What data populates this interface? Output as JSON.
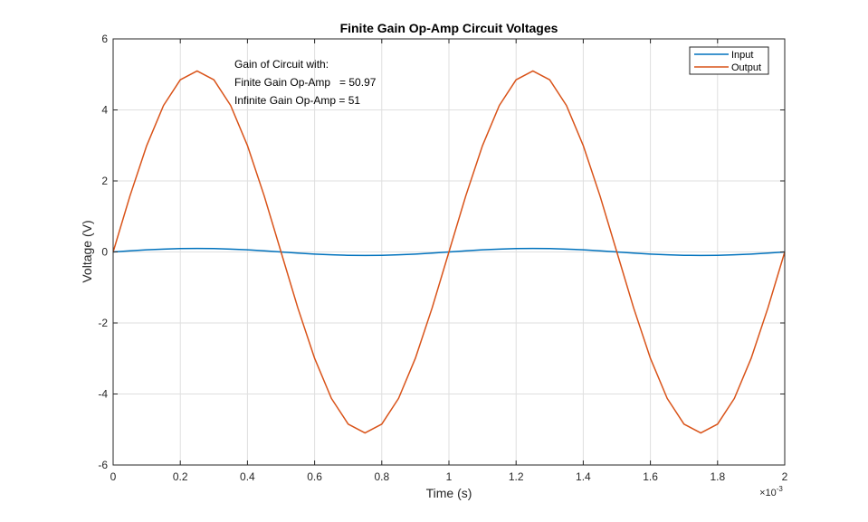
{
  "chart_data": {
    "type": "line",
    "title": "Finite Gain Op-Amp Circuit Voltages",
    "xlabel": "Time (s)",
    "ylabel": "Voltage (V)",
    "x_exponent_base": "×10",
    "x_exponent_power": "-3",
    "xlim": [
      0,
      2
    ],
    "ylim": [
      -6,
      6
    ],
    "x_ticks": [
      "0",
      "0.2",
      "0.4",
      "0.6",
      "0.8",
      "1",
      "1.2",
      "1.4",
      "1.6",
      "1.8",
      "2"
    ],
    "y_ticks": [
      "-6",
      "-4",
      "-2",
      "0",
      "2",
      "4",
      "6"
    ],
    "grid": true,
    "legend_position": "top-right",
    "annotation": [
      "Gain of Circuit with:",
      "Finite Gain Op-Amp   = 50.97",
      "Infinite Gain Op-Amp = 51"
    ],
    "series": [
      {
        "name": "Input",
        "color": "#0072BD",
        "x": [
          0,
          0.05,
          0.1,
          0.15,
          0.2,
          0.25,
          0.3,
          0.35,
          0.4,
          0.45,
          0.5,
          0.55,
          0.6,
          0.65,
          0.7,
          0.75,
          0.8,
          0.85,
          0.9,
          0.95,
          1,
          1.05,
          1.1,
          1.15,
          1.2,
          1.25,
          1.3,
          1.35,
          1.4,
          1.45,
          1.5,
          1.55,
          1.6,
          1.65,
          1.7,
          1.75,
          1.8,
          1.85,
          1.9,
          1.95,
          2
        ],
        "y": [
          0,
          0.031,
          0.059,
          0.081,
          0.095,
          0.1,
          0.095,
          0.081,
          0.059,
          0.031,
          0,
          -0.031,
          -0.059,
          -0.081,
          -0.095,
          -0.1,
          -0.095,
          -0.081,
          -0.059,
          -0.031,
          0,
          0.031,
          0.059,
          0.081,
          0.095,
          0.1,
          0.095,
          0.081,
          0.059,
          0.031,
          0,
          -0.031,
          -0.059,
          -0.081,
          -0.095,
          -0.1,
          -0.095,
          -0.081,
          -0.059,
          -0.031,
          0
        ]
      },
      {
        "name": "Output",
        "color": "#D95319",
        "x": [
          0,
          0.05,
          0.1,
          0.15,
          0.2,
          0.25,
          0.3,
          0.35,
          0.4,
          0.45,
          0.5,
          0.55,
          0.6,
          0.65,
          0.7,
          0.75,
          0.8,
          0.85,
          0.9,
          0.95,
          1,
          1.05,
          1.1,
          1.15,
          1.2,
          1.25,
          1.3,
          1.35,
          1.4,
          1.45,
          1.5,
          1.55,
          1.6,
          1.65,
          1.7,
          1.75,
          1.8,
          1.85,
          1.9,
          1.95,
          2
        ],
        "y": [
          0,
          1.575,
          2.996,
          4.124,
          4.848,
          5.097,
          4.848,
          4.124,
          2.996,
          1.575,
          0,
          -1.575,
          -2.996,
          -4.124,
          -4.848,
          -5.097,
          -4.848,
          -4.124,
          -2.996,
          -1.575,
          0,
          1.575,
          2.996,
          4.124,
          4.848,
          5.097,
          4.848,
          4.124,
          2.996,
          1.575,
          0,
          -1.575,
          -2.996,
          -4.124,
          -4.848,
          -5.097,
          -4.848,
          -4.124,
          -2.996,
          -1.575,
          0
        ]
      }
    ]
  }
}
